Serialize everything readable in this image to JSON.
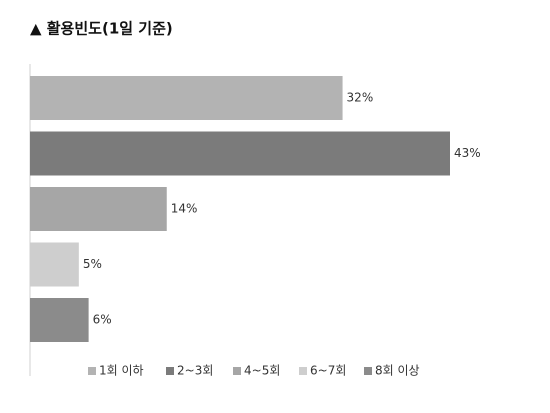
{
  "chart_data": {
    "type": "bar",
    "orientation": "horizontal",
    "title": "▲ 활용빈도(1일 기준)",
    "categories": [
      "1회 이하",
      "2~3회",
      "4~5회",
      "6~7회",
      "8회 이상"
    ],
    "values": [
      32,
      43,
      14,
      5,
      6
    ],
    "value_labels": [
      "32%",
      "43%",
      "14%",
      "5%",
      "6%"
    ],
    "colors": [
      "#b3b3b3",
      "#7b7b7b",
      "#a6a6a6",
      "#cecece",
      "#8b8b8b"
    ],
    "legend": "bottom"
  }
}
